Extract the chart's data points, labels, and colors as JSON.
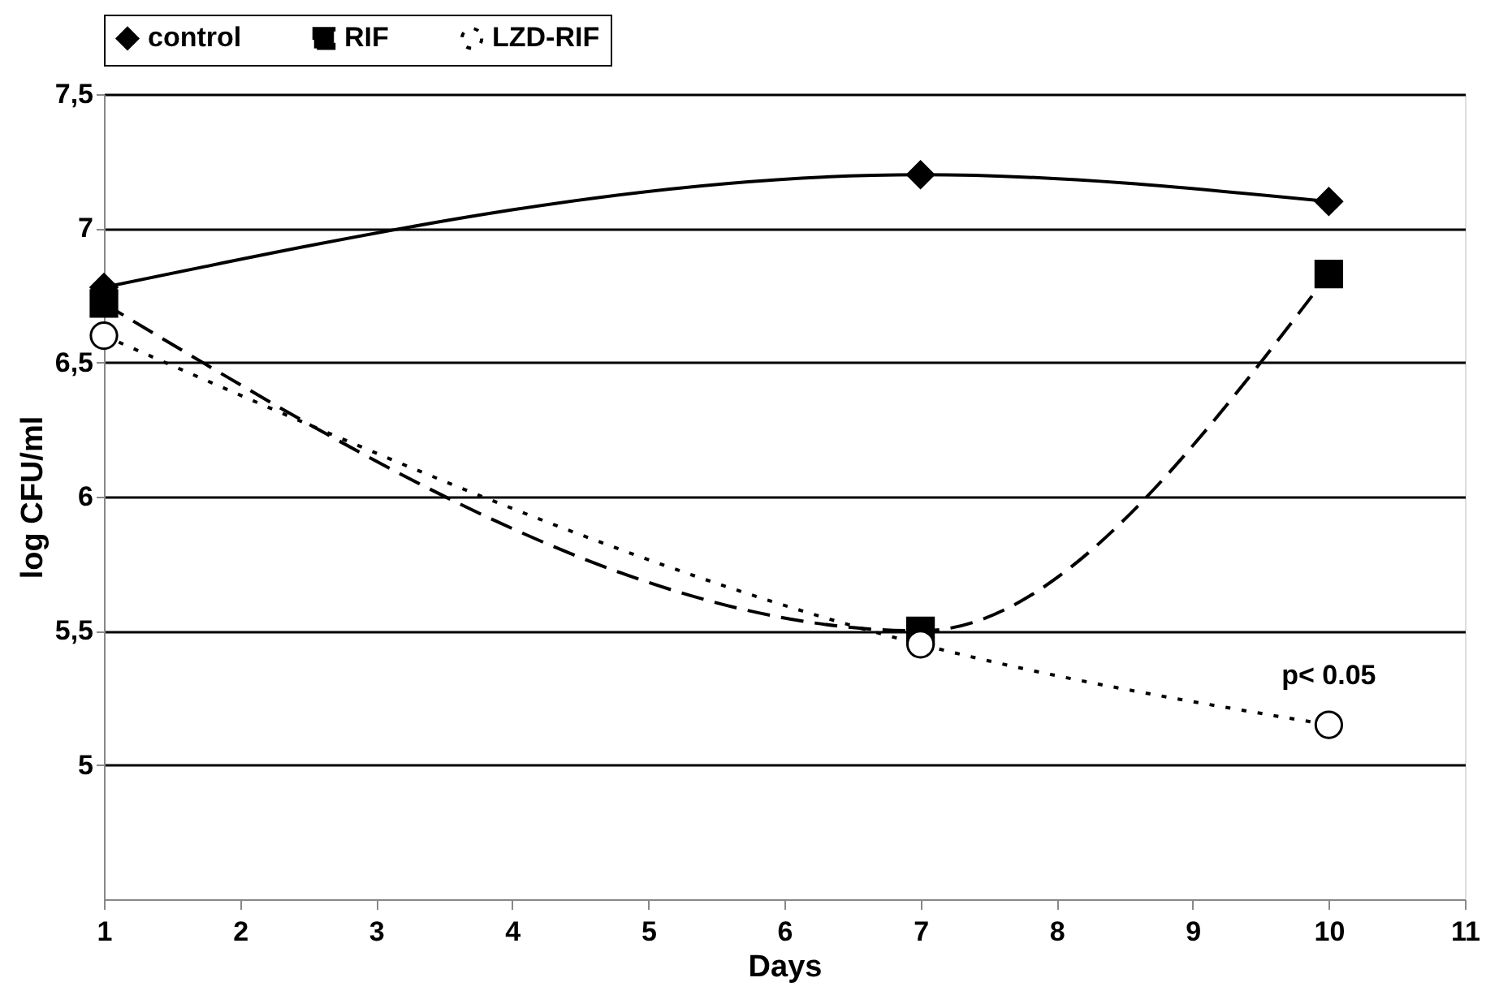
{
  "chart_data": {
    "type": "line",
    "xlabel": "Days",
    "ylabel": "log CFU/ml",
    "x": [
      1,
      7,
      10
    ],
    "series": [
      {
        "name": "control",
        "color": "#000000",
        "values": [
          6.78,
          7.2,
          7.1
        ],
        "marker": "diamond",
        "line_style": "solid"
      },
      {
        "name": "RIF",
        "color": "#000000",
        "values": [
          6.72,
          5.5,
          6.83
        ],
        "marker": "square",
        "line_style": "dashed"
      },
      {
        "name": "LZD-RIF",
        "color": "#000000",
        "values": [
          6.6,
          5.45,
          5.15
        ],
        "marker": "circle",
        "line_style": "dotted"
      }
    ],
    "xlim": [
      1,
      11
    ],
    "xticks": [
      1,
      2,
      3,
      4,
      5,
      6,
      7,
      8,
      9,
      10,
      11
    ],
    "ylim": [
      4.5,
      7.5
    ],
    "yticks": [
      {
        "value": 5,
        "label": "5"
      },
      {
        "value": 5.5,
        "label": "5,5"
      },
      {
        "value": 6,
        "label": "6"
      },
      {
        "value": 6.5,
        "label": "6,5"
      },
      {
        "value": 7,
        "label": "7"
      },
      {
        "value": 7.5,
        "label": "7,5"
      }
    ],
    "grid": "y",
    "legend": "top",
    "annotations": [
      {
        "text": "p< 0.05",
        "x": 10,
        "y": 5.15
      }
    ]
  }
}
